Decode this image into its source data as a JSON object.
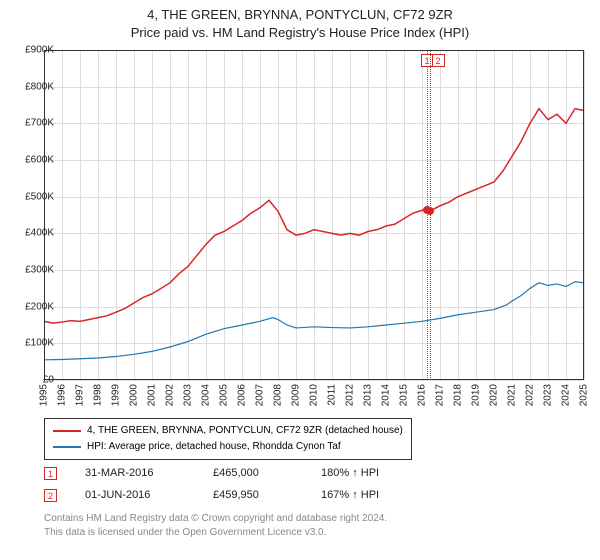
{
  "title_line1": "4, THE GREEN, BRYNNA, PONTYCLUN, CF72 9ZR",
  "title_line2": "Price paid vs. HM Land Registry's House Price Index (HPI)",
  "chart": {
    "type": "line",
    "background_color": "#ffffff",
    "grid_color": "#dddddd",
    "border_color": "#333333",
    "ylim": [
      0,
      900
    ],
    "ylabel_format_prefix": "£",
    "ylabel_format_suffix": "K",
    "yticks": [
      0,
      100,
      200,
      300,
      400,
      500,
      600,
      700,
      800,
      900
    ],
    "xlim": [
      1995,
      2025
    ],
    "xticks": [
      1995,
      1996,
      1997,
      1998,
      1999,
      2000,
      2001,
      2002,
      2003,
      2004,
      2005,
      2006,
      2007,
      2008,
      2009,
      2010,
      2011,
      2012,
      2013,
      2014,
      2015,
      2016,
      2017,
      2018,
      2019,
      2020,
      2021,
      2022,
      2023,
      2024,
      2025
    ],
    "series": [
      {
        "name": "4, THE GREEN, BRYNNA, PONTYCLUN, CF72 9ZR (detached house)",
        "color": "#d62728",
        "line_width": 1.5,
        "points": [
          [
            1995.0,
            160
          ],
          [
            1995.5,
            155
          ],
          [
            1996.0,
            158
          ],
          [
            1996.5,
            162
          ],
          [
            1997.0,
            160
          ],
          [
            1997.5,
            165
          ],
          [
            1998.0,
            170
          ],
          [
            1998.5,
            175
          ],
          [
            1999.0,
            185
          ],
          [
            1999.5,
            195
          ],
          [
            2000.0,
            210
          ],
          [
            2000.5,
            225
          ],
          [
            2001.0,
            235
          ],
          [
            2001.5,
            250
          ],
          [
            2002.0,
            265
          ],
          [
            2002.5,
            290
          ],
          [
            2003.0,
            310
          ],
          [
            2003.5,
            340
          ],
          [
            2004.0,
            370
          ],
          [
            2004.5,
            395
          ],
          [
            2005.0,
            405
          ],
          [
            2005.5,
            420
          ],
          [
            2006.0,
            435
          ],
          [
            2006.5,
            455
          ],
          [
            2007.0,
            470
          ],
          [
            2007.5,
            490
          ],
          [
            2008.0,
            460
          ],
          [
            2008.5,
            410
          ],
          [
            2009.0,
            395
          ],
          [
            2009.5,
            400
          ],
          [
            2010.0,
            410
          ],
          [
            2010.5,
            405
          ],
          [
            2011.0,
            400
          ],
          [
            2011.5,
            395
          ],
          [
            2012.0,
            400
          ],
          [
            2012.5,
            395
          ],
          [
            2013.0,
            405
          ],
          [
            2013.5,
            410
          ],
          [
            2014.0,
            420
          ],
          [
            2014.5,
            425
          ],
          [
            2015.0,
            440
          ],
          [
            2015.5,
            455
          ],
          [
            2016.0,
            463
          ],
          [
            2016.4,
            460
          ],
          [
            2017.0,
            475
          ],
          [
            2017.5,
            485
          ],
          [
            2018.0,
            500
          ],
          [
            2018.5,
            510
          ],
          [
            2019.0,
            520
          ],
          [
            2019.5,
            530
          ],
          [
            2020.0,
            540
          ],
          [
            2020.5,
            570
          ],
          [
            2021.0,
            610
          ],
          [
            2021.5,
            650
          ],
          [
            2022.0,
            700
          ],
          [
            2022.5,
            740
          ],
          [
            2023.0,
            710
          ],
          [
            2023.5,
            725
          ],
          [
            2024.0,
            700
          ],
          [
            2024.5,
            740
          ],
          [
            2025.0,
            735
          ]
        ]
      },
      {
        "name": "HPI: Average price, detached house, Rhondda Cynon Taf",
        "color": "#1f77b4",
        "line_width": 1.2,
        "points": [
          [
            1995.0,
            55
          ],
          [
            1996.0,
            56
          ],
          [
            1997.0,
            58
          ],
          [
            1998.0,
            60
          ],
          [
            1999.0,
            64
          ],
          [
            2000.0,
            70
          ],
          [
            2001.0,
            78
          ],
          [
            2002.0,
            90
          ],
          [
            2003.0,
            105
          ],
          [
            2004.0,
            125
          ],
          [
            2005.0,
            140
          ],
          [
            2006.0,
            150
          ],
          [
            2007.0,
            160
          ],
          [
            2007.7,
            170
          ],
          [
            2008.0,
            165
          ],
          [
            2008.5,
            150
          ],
          [
            2009.0,
            142
          ],
          [
            2010.0,
            145
          ],
          [
            2011.0,
            143
          ],
          [
            2012.0,
            142
          ],
          [
            2013.0,
            145
          ],
          [
            2014.0,
            150
          ],
          [
            2015.0,
            155
          ],
          [
            2016.0,
            160
          ],
          [
            2017.0,
            168
          ],
          [
            2018.0,
            178
          ],
          [
            2019.0,
            185
          ],
          [
            2020.0,
            192
          ],
          [
            2020.7,
            205
          ],
          [
            2021.0,
            215
          ],
          [
            2021.5,
            230
          ],
          [
            2022.0,
            250
          ],
          [
            2022.5,
            265
          ],
          [
            2023.0,
            258
          ],
          [
            2023.5,
            262
          ],
          [
            2024.0,
            255
          ],
          [
            2024.5,
            268
          ],
          [
            2025.0,
            265
          ]
        ]
      }
    ],
    "sale_markers": [
      {
        "label": "1",
        "x": 2016.25,
        "y": 465
      },
      {
        "label": "2",
        "x": 2016.42,
        "y": 460
      }
    ]
  },
  "legend": {
    "items": [
      {
        "color": "#d62728",
        "label": "4, THE GREEN, BRYNNA, PONTYCLUN, CF72 9ZR (detached house)"
      },
      {
        "color": "#1f77b4",
        "label": "HPI: Average price, detached house, Rhondda Cynon Taf"
      }
    ]
  },
  "sales": [
    {
      "marker": "1",
      "date": "31-MAR-2016",
      "price": "£465,000",
      "hpi": "180% ↑ HPI"
    },
    {
      "marker": "2",
      "date": "01-JUN-2016",
      "price": "£459,950",
      "hpi": "167% ↑ HPI"
    }
  ],
  "footer": {
    "line1": "Contains HM Land Registry data © Crown copyright and database right 2024.",
    "line2": "This data is licensed under the Open Government Licence v3.0."
  }
}
